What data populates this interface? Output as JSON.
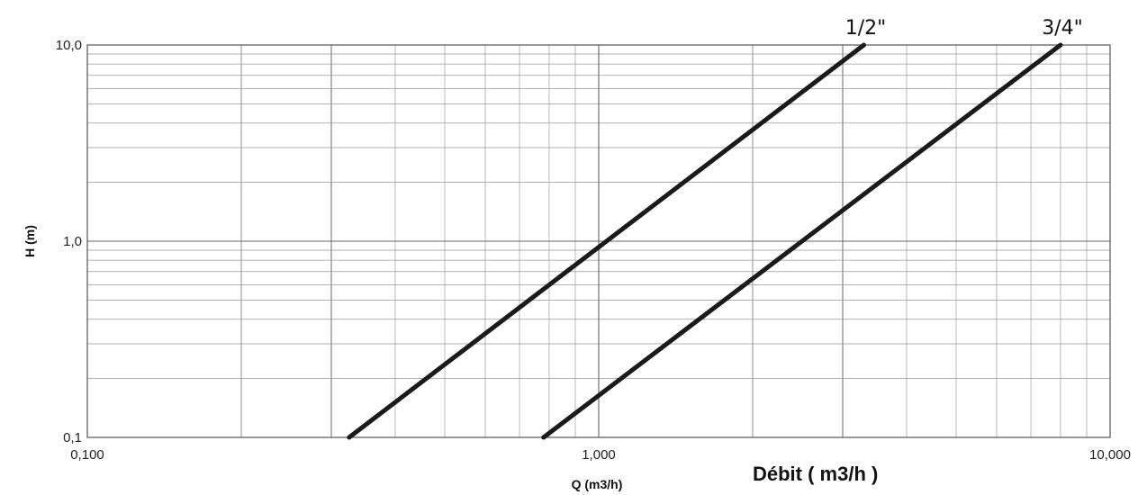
{
  "chart_data": {
    "type": "line",
    "title": "",
    "xlabel": "Q (m3/h)",
    "ylabel": "H (m)",
    "secondary_label": "Débit ( m3/h )",
    "xscale": "log",
    "yscale": "log",
    "xlim": [
      0.1,
      10
    ],
    "ylim": [
      0.1,
      10
    ],
    "grid": true,
    "x_ticks": [
      {
        "value": 0.1,
        "label": "0,100"
      },
      {
        "value": 1,
        "label": "1,000"
      },
      {
        "value": 10,
        "label": "10,000"
      }
    ],
    "y_ticks": [
      {
        "value": 0.1,
        "label": "0,1"
      },
      {
        "value": 1,
        "label": "1,0"
      },
      {
        "value": 10,
        "label": "10,0"
      }
    ],
    "series": [
      {
        "name": "1/2\"",
        "points": [
          [
            0.325,
            0.1
          ],
          [
            3.3,
            10
          ]
        ]
      },
      {
        "name": "3/4\"",
        "points": [
          [
            0.78,
            0.1
          ],
          [
            8.0,
            10
          ]
        ]
      }
    ]
  }
}
